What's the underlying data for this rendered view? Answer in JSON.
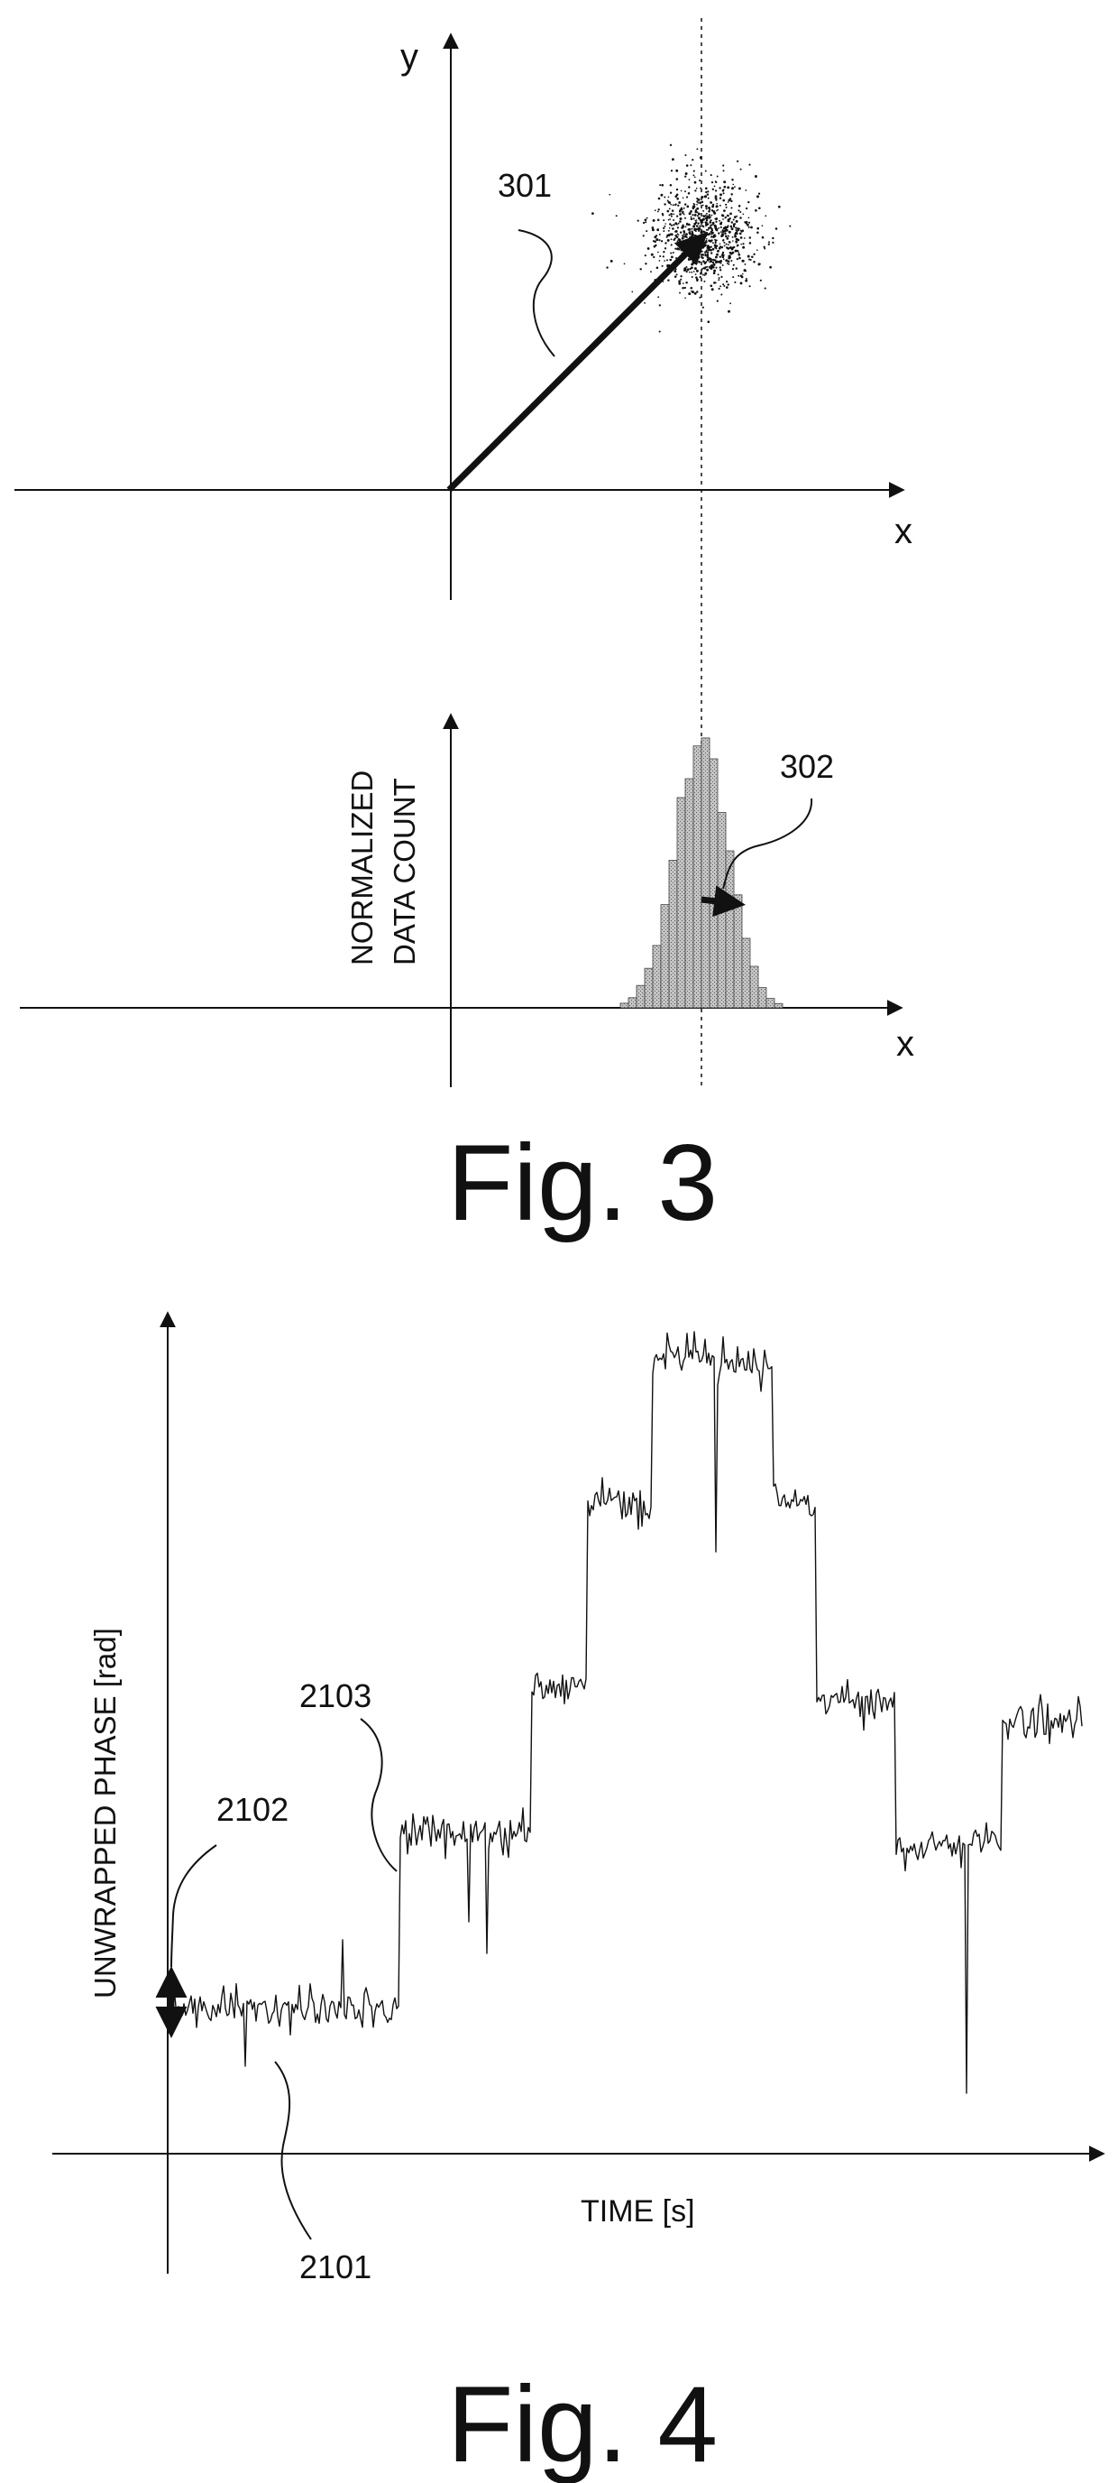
{
  "fig3": {
    "caption": "Fig. 3",
    "top_panel": {
      "y_axis_label": "y",
      "x_axis_label": "x",
      "vector_ref": "301"
    },
    "bottom_panel": {
      "y_axis_label_line1": "NORMALIZED",
      "y_axis_label_line2": "DATA COUNT",
      "x_axis_label": "x",
      "mean_ref": "302"
    }
  },
  "fig4": {
    "caption": "Fig. 4",
    "y_axis_label": "UNWRAPPED PHASE [rad]",
    "x_axis_label": "TIME [s]",
    "refs": {
      "trace": "2101",
      "noise_band": "2102",
      "step": "2103"
    }
  },
  "colors": {
    "ink": "#111111",
    "histogram_fill": "#a8a8a8"
  }
}
